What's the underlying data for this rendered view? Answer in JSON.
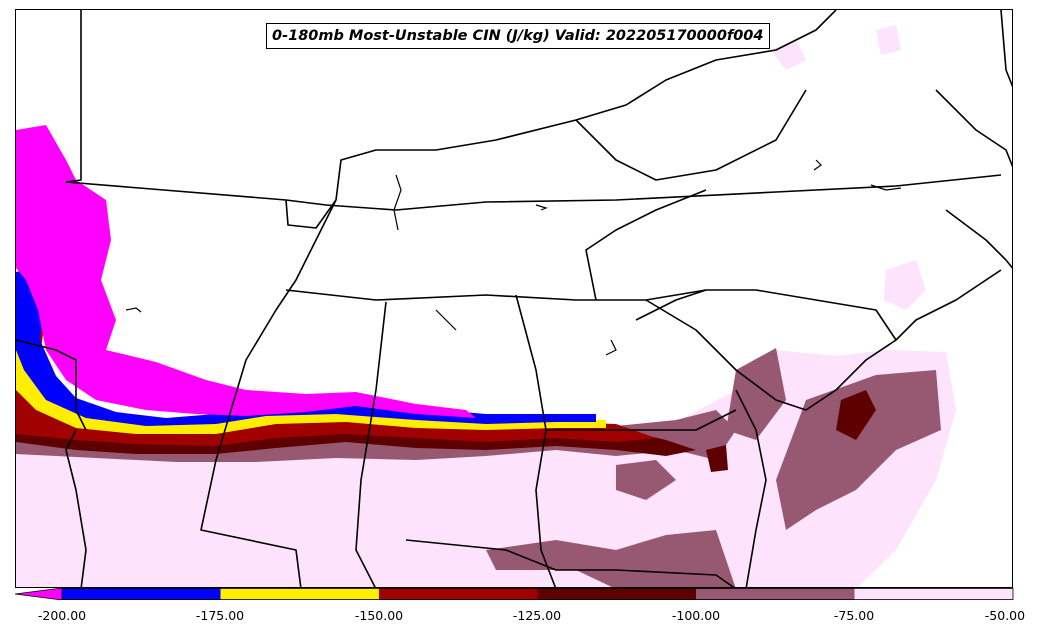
{
  "title": "0-180mb Most-Unstable CIN (J/kg) Valid: 202205170000f004",
  "colors": {
    "lt_-200": "#ff00ff",
    "-200_-175": "#0000ff",
    "-175_-150": "#ffee00",
    "-150_-125": "#a00000",
    "-125_-100": "#5e0000",
    "-100_-75": "#975872",
    "-75_-50": "#fde3fb"
  },
  "colorbar": {
    "ticks": [
      "-200.00",
      "-175.00",
      "-150.00",
      "-125.00",
      "-100.00",
      "-75.00",
      "-50.00"
    ],
    "bins": [
      {
        "range": "< -200",
        "color": "#ff00ff"
      },
      {
        "range": "-200 to -175",
        "color": "#0000ff"
      },
      {
        "range": "-175 to -150",
        "color": "#ffee00"
      },
      {
        "range": "-150 to -125",
        "color": "#a00000"
      },
      {
        "range": "-125 to -100",
        "color": "#5e0000"
      },
      {
        "range": "-100 to -75",
        "color": "#975872"
      },
      {
        "range": "-75 to -50",
        "color": "#fde3fb"
      }
    ]
  }
}
